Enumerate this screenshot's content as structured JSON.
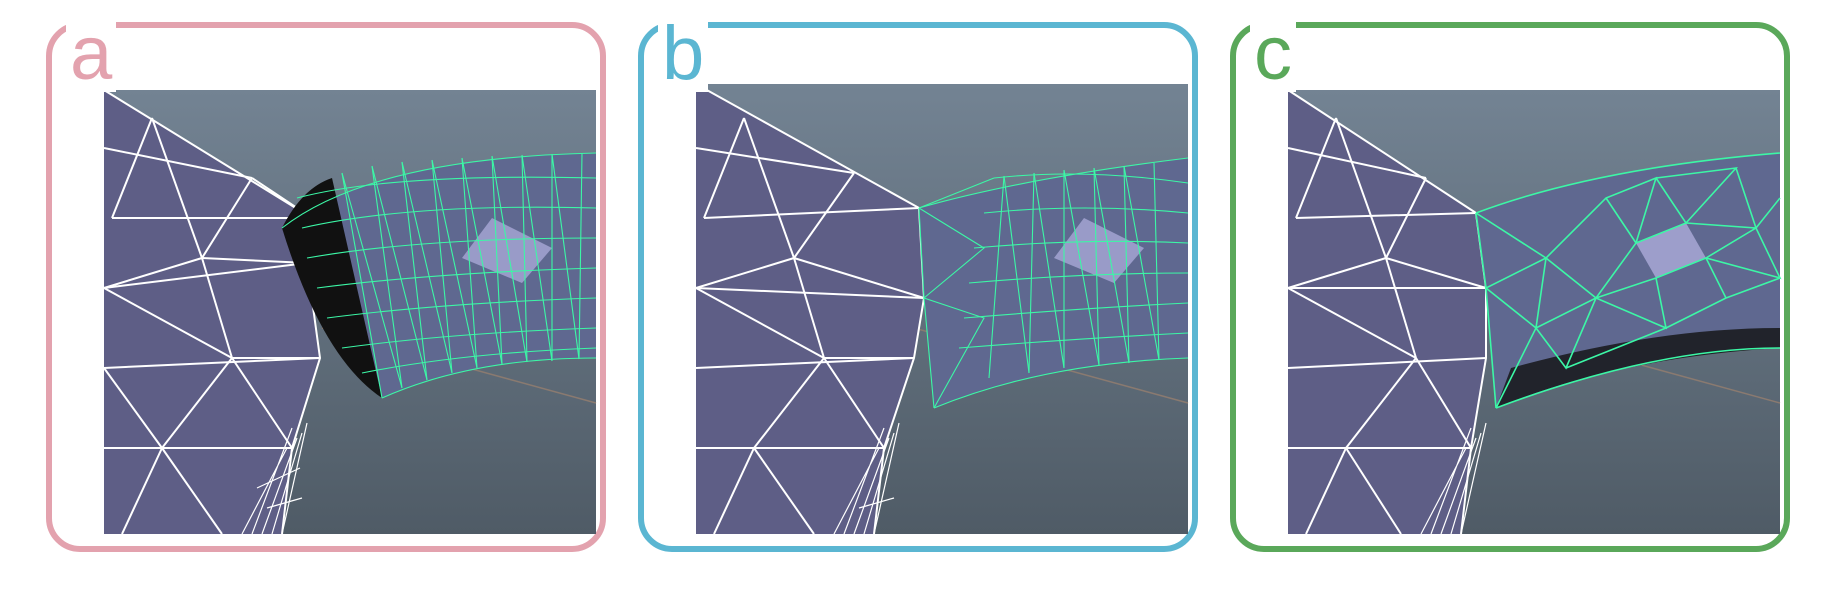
{
  "panels": [
    {
      "label": "a",
      "border_color": "#e3a2ae",
      "label_color": "#e3a2ae"
    },
    {
      "label": "b",
      "border_color": "#5bb6d2",
      "label_color": "#5bb6d2"
    },
    {
      "label": "c",
      "border_color": "#5aa85a",
      "label_color": "#5aa85a"
    }
  ],
  "colors": {
    "background_top": "#738393",
    "background_bottom": "#4f5b66",
    "gray_mesh_fill": "#5e5e86",
    "gray_mesh_edge": "#ffffff",
    "green_mesh_edge": "#3cf7a6",
    "highlight": "#a8a8d6"
  }
}
